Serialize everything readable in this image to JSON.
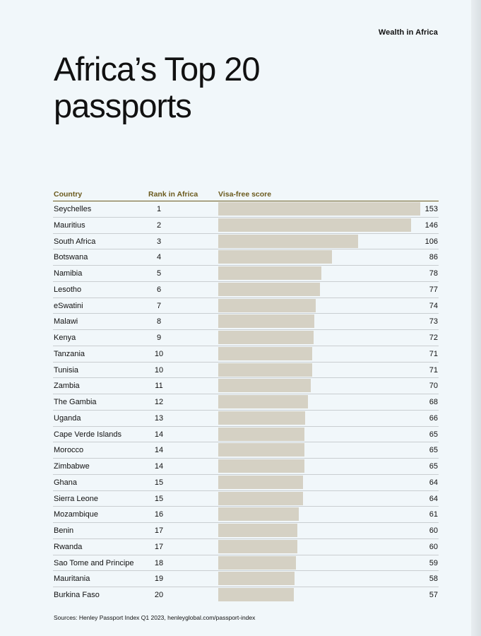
{
  "header": {
    "section_label": "Wealth in Africa",
    "title": "Africa’s Top 20 passports"
  },
  "source": "Sources: Henley Passport Index Q1 2023, henleyglobal.com/passport-index",
  "colors": {
    "background": "#f1f7fa",
    "header_rule": "#6b5a1d",
    "bar": "#d5d1c4"
  },
  "chart_data": {
    "type": "bar",
    "orientation": "horizontal",
    "columns": [
      "Country",
      "Rank in Africa",
      "Visa-free score"
    ],
    "categories": [
      "Seychelles",
      "Mauritius",
      "South Africa",
      "Botswana",
      "Namibia",
      "Lesotho",
      "eSwatini",
      "Malawi",
      "Kenya",
      "Tanzania",
      "Tunisia",
      "Zambia",
      "The Gambia",
      "Uganda",
      "Cape Verde Islands",
      "Morocco",
      "Zimbabwe",
      "Ghana",
      "Sierra Leone",
      "Mozambique",
      "Benin",
      "Rwanda",
      "Sao Tome and Principe",
      "Mauritania",
      "Burkina Faso"
    ],
    "ranks": [
      1,
      2,
      3,
      4,
      5,
      6,
      7,
      8,
      9,
      10,
      10,
      11,
      12,
      13,
      14,
      14,
      14,
      15,
      15,
      16,
      17,
      17,
      18,
      19,
      20
    ],
    "values": [
      153,
      146,
      106,
      86,
      78,
      77,
      74,
      73,
      72,
      71,
      71,
      70,
      68,
      66,
      65,
      65,
      65,
      64,
      64,
      61,
      60,
      60,
      59,
      58,
      57
    ],
    "xlim": [
      0,
      153
    ],
    "grid": false,
    "legend": "none"
  }
}
